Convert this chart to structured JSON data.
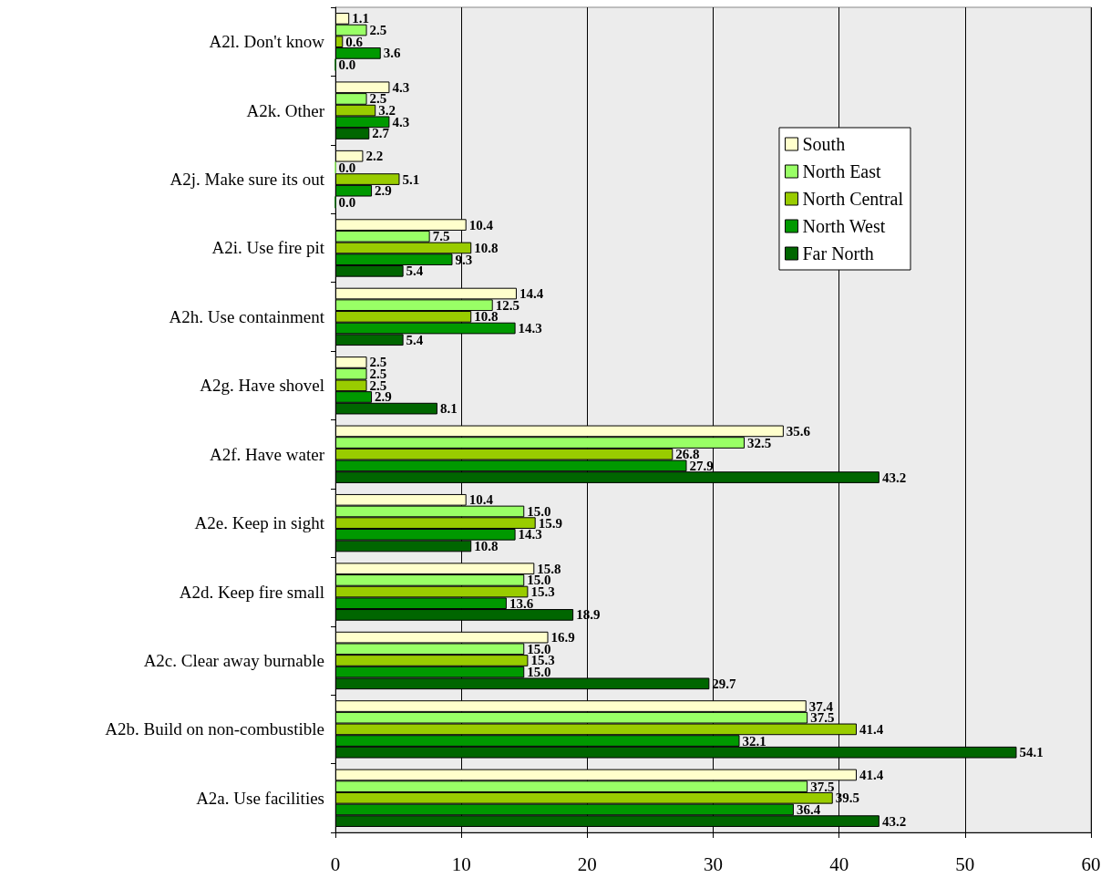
{
  "chart_data": {
    "type": "bar",
    "orientation": "horizontal",
    "categories": [
      "A2l. Don't know",
      "A2k. Other",
      "A2j. Make sure its out",
      "A2i. Use fire pit",
      "A2h. Use containment",
      "A2g. Have shovel",
      "A2f. Have water",
      "A2e. Keep in sight",
      "A2d. Keep fire small",
      "A2c. Clear away burnable",
      "A2b. Build on non-combustible",
      "A2a. Use facilities"
    ],
    "series": [
      {
        "name": "South",
        "color": "#ffffcc",
        "values": [
          1.1,
          4.3,
          2.2,
          10.4,
          14.4,
          2.5,
          35.6,
          10.4,
          15.8,
          16.9,
          37.4,
          41.4
        ],
        "value_labels": [
          "1.1",
          "4.3",
          "2.2",
          "10.4",
          "14.4",
          "2.5",
          "35.6",
          "10.4",
          "15.8",
          "16.9",
          "37.4",
          "41.4"
        ]
      },
      {
        "name": "North East",
        "color": "#99ff66",
        "values": [
          2.5,
          2.5,
          0.0,
          7.5,
          12.5,
          2.5,
          32.5,
          15.0,
          15.0,
          15.0,
          37.5,
          37.5
        ],
        "value_labels": [
          "2.5",
          "2.5",
          "0.0",
          "7.5",
          "12.5",
          "2.5",
          "32.5",
          "15.0",
          "15.0",
          "15.0",
          "37.5",
          "37.5"
        ]
      },
      {
        "name": "North Central",
        "color": "#99cc00",
        "values": [
          0.6,
          3.2,
          5.1,
          10.8,
          10.8,
          2.5,
          26.8,
          15.9,
          15.3,
          15.3,
          41.4,
          39.5
        ],
        "value_labels": [
          "0.6",
          "3.2",
          "5.1",
          "10.8",
          "10.8",
          "2.5",
          "26.8",
          "15.9",
          "15.3",
          "15.3",
          "41.4",
          "39.5"
        ]
      },
      {
        "name": "North West",
        "color": "#009900",
        "values": [
          3.6,
          4.3,
          2.9,
          9.3,
          14.3,
          2.9,
          27.9,
          14.3,
          13.6,
          15.0,
          32.1,
          36.4
        ],
        "value_labels": [
          "3.6",
          "4.3",
          "2.9",
          "9.3",
          "14.3",
          "2.9",
          "27.9",
          "14.3",
          "13.6",
          "15.0",
          "32.1",
          "36.4"
        ]
      },
      {
        "name": "Far North",
        "color": "#006600",
        "values": [
          0.0,
          2.7,
          0.0,
          5.4,
          5.4,
          8.1,
          43.2,
          10.8,
          18.9,
          29.7,
          54.1,
          43.2
        ],
        "value_labels": [
          "0.0",
          "2.7",
          "0.0",
          "5.4",
          "5.4",
          "8.1",
          "43.2",
          "10.8",
          "18.9",
          "29.7",
          "54.1",
          "43.2"
        ]
      }
    ],
    "xlim": [
      0,
      60
    ],
    "xticks": [
      0,
      10,
      20,
      30,
      40,
      50,
      60
    ],
    "grid": "x",
    "legend": "top right"
  }
}
